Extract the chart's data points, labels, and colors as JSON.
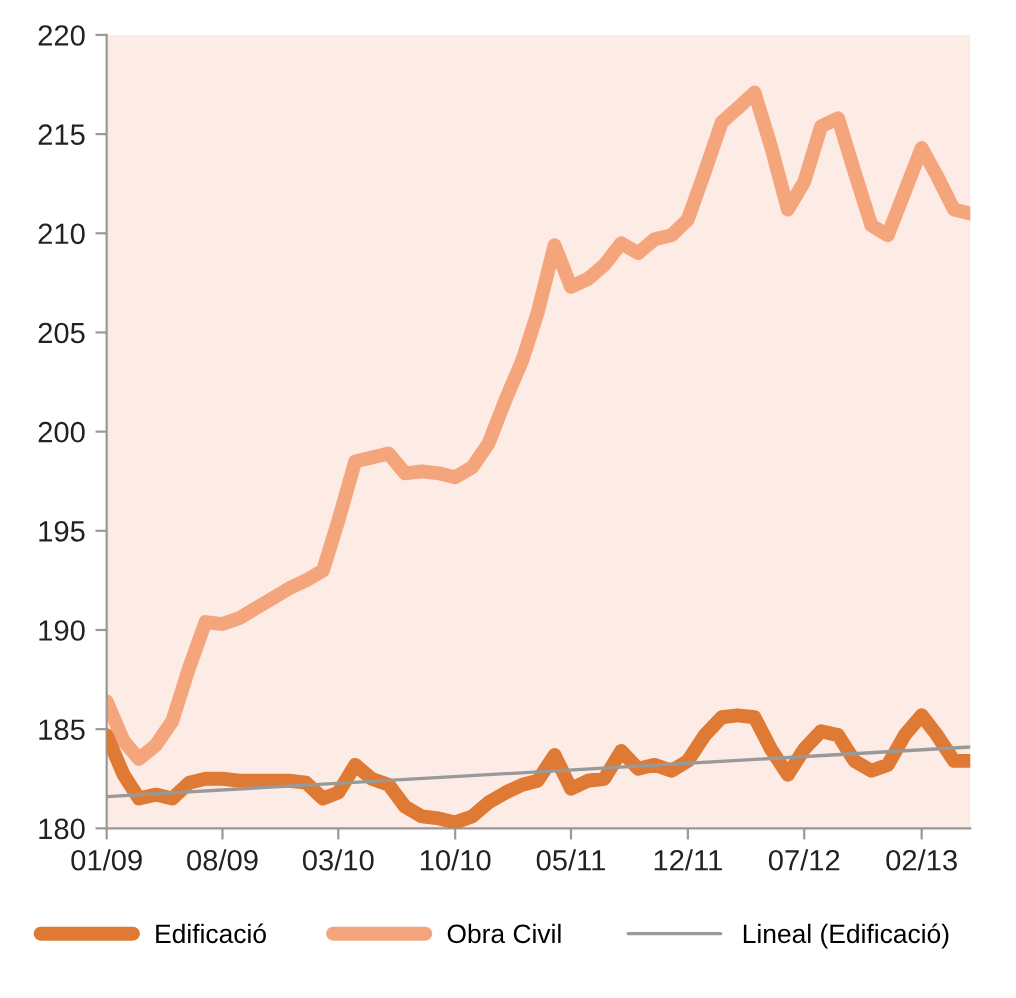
{
  "chart_data": {
    "type": "line",
    "x": [
      "2009-01",
      "2009-02",
      "2009-03",
      "2009-04",
      "2009-05",
      "2009-06",
      "2009-07",
      "2009-08",
      "2009-09",
      "2009-10",
      "2009-11",
      "2009-12",
      "2010-01",
      "2010-02",
      "2010-03",
      "2010-04",
      "2010-05",
      "2010-06",
      "2010-07",
      "2010-08",
      "2010-09",
      "2010-10",
      "2010-11",
      "2010-12",
      "2011-01",
      "2011-02",
      "2011-03",
      "2011-04",
      "2011-05",
      "2011-06",
      "2011-07",
      "2011-08",
      "2011-09",
      "2011-10",
      "2011-11",
      "2011-12",
      "2012-01",
      "2012-02",
      "2012-03",
      "2012-04",
      "2012-05",
      "2012-06",
      "2012-07",
      "2012-08",
      "2012-09",
      "2012-10",
      "2012-11",
      "2012-12",
      "2013-01",
      "2013-02",
      "2013-03",
      "2013-04",
      "2013-05"
    ],
    "series": [
      {
        "name": "Edificació",
        "color": "#df7a35",
        "values": [
          184.7,
          182.7,
          181.5,
          181.7,
          181.5,
          182.3,
          182.5,
          182.5,
          182.4,
          182.4,
          182.4,
          182.4,
          182.3,
          181.5,
          181.8,
          183.2,
          182.5,
          182.2,
          181.1,
          180.6,
          180.5,
          180.3,
          180.6,
          181.3,
          181.8,
          182.2,
          182.4,
          183.7,
          182.0,
          182.4,
          182.5,
          183.9,
          183.0,
          183.2,
          182.9,
          183.4,
          184.7,
          185.6,
          185.7,
          185.6,
          184.0,
          182.7,
          184.0,
          184.9,
          184.7,
          183.4,
          182.9,
          183.2,
          184.7,
          185.7,
          184.7,
          183.4,
          183.4
        ]
      },
      {
        "name": "Obra Civil",
        "color": "#f4a57c",
        "values": [
          186.4,
          184.4,
          183.5,
          184.2,
          185.4,
          188.1,
          190.4,
          190.3,
          190.6,
          191.1,
          191.6,
          192.1,
          192.5,
          193.0,
          195.5,
          198.5,
          198.7,
          198.9,
          197.9,
          198.0,
          197.9,
          197.7,
          198.2,
          199.4,
          201.6,
          203.6,
          206.0,
          209.4,
          207.3,
          207.7,
          208.4,
          209.5,
          209.0,
          209.7,
          209.9,
          210.7,
          213.1,
          215.6,
          216.3,
          217.1,
          214.4,
          211.2,
          212.6,
          215.4,
          215.8,
          213.1,
          210.4,
          209.9,
          212.1,
          214.3,
          212.9,
          211.2,
          211.0
        ]
      },
      {
        "name": "Lineal (Edificació)",
        "color": "#999999",
        "x": [
          "2009-01",
          "2013-05"
        ],
        "values": [
          181.6,
          184.1
        ]
      }
    ],
    "xlim": [
      "2009-01",
      "2013-05"
    ],
    "xticks": [
      {
        "value": "2009-01",
        "label": "01/09"
      },
      {
        "value": "2009-08",
        "label": "08/09"
      },
      {
        "value": "2010-03",
        "label": "03/10"
      },
      {
        "value": "2010-10",
        "label": "10/10"
      },
      {
        "value": "2011-05",
        "label": "05/11"
      },
      {
        "value": "2011-12",
        "label": "12/11"
      },
      {
        "value": "2012-07",
        "label": "07/12"
      },
      {
        "value": "2013-02",
        "label": "02/13"
      }
    ],
    "ylim": [
      180,
      220
    ],
    "yticks": [
      180,
      185,
      190,
      195,
      200,
      205,
      210,
      215,
      220
    ],
    "grid": false,
    "legend": "bottom"
  }
}
